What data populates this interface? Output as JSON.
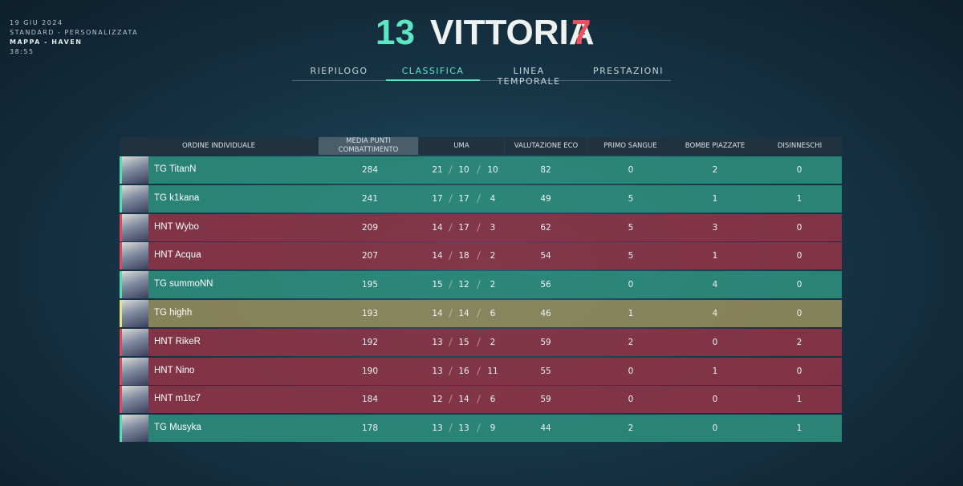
{
  "header": {
    "date": "19 GIU 2024",
    "mode": "STANDARD - PERSONALIZZATA",
    "map": "MAPPA - HAVEN",
    "duration": "38:55"
  },
  "score": {
    "team_score": 13,
    "result": "VITTORIA",
    "enemy_score": 7,
    "team_color": "#5ee6c4",
    "enemy_color": "#f0515f"
  },
  "tabs": {
    "items": [
      "RIEPILOGO",
      "CLASSIFICA",
      "LINEA TEMPORALE",
      "PRESTAZIONI"
    ],
    "active": 1
  },
  "table": {
    "columns": [
      "ORDINE INDIVIDUALE",
      "MEDIA PUNTI COMBATTIMENTO",
      "UMA",
      "VALUTAZIONE ECO",
      "PRIMO SANGUE",
      "BOMBE PIAZZATE",
      "DISINNESCHI"
    ],
    "sorted_column": 1,
    "rows": [
      {
        "name": "TG TitanN",
        "color": "#2c8b7b",
        "accent": "#4be3b6",
        "acs": 284,
        "kda": [
          21,
          10,
          10
        ],
        "eco": 82,
        "first_bloods": 0,
        "plants": 2,
        "defuses": 0
      },
      {
        "name": "TG k1kana",
        "color": "#2c8b7b",
        "accent": "#4be3b6",
        "acs": 241,
        "kda": [
          17,
          17,
          4
        ],
        "eco": 49,
        "first_bloods": 5,
        "plants": 1,
        "defuses": 1
      },
      {
        "name": "HNT Wybo",
        "color": "#8a3447",
        "accent": "#e8455c",
        "acs": 209,
        "kda": [
          14,
          17,
          3
        ],
        "eco": 62,
        "first_bloods": 5,
        "plants": 3,
        "defuses": 0
      },
      {
        "name": "HNT Acqua",
        "color": "#8a3447",
        "accent": "#e8455c",
        "acs": 207,
        "kda": [
          14,
          18,
          2
        ],
        "eco": 54,
        "first_bloods": 5,
        "plants": 1,
        "defuses": 0
      },
      {
        "name": "TG summoNN",
        "color": "#2c8b7b",
        "accent": "#4be3b6",
        "acs": 195,
        "kda": [
          15,
          12,
          2
        ],
        "eco": 56,
        "first_bloods": 0,
        "plants": 4,
        "defuses": 0
      },
      {
        "name": "TG highh",
        "color": "#8f8a5c",
        "accent": "#eee27a",
        "acs": 193,
        "kda": [
          14,
          14,
          6
        ],
        "eco": 46,
        "first_bloods": 1,
        "plants": 4,
        "defuses": 0
      },
      {
        "name": "HNT RikeR",
        "color": "#8a3447",
        "accent": "#e8455c",
        "acs": 192,
        "kda": [
          13,
          15,
          2
        ],
        "eco": 59,
        "first_bloods": 2,
        "plants": 0,
        "defuses": 2
      },
      {
        "name": "HNT Nino",
        "color": "#8a3447",
        "accent": "#e8455c",
        "acs": 190,
        "kda": [
          13,
          16,
          11
        ],
        "eco": 55,
        "first_bloods": 0,
        "plants": 1,
        "defuses": 0
      },
      {
        "name": "HNT m1tc7",
        "color": "#8a3447",
        "accent": "#e8455c",
        "acs": 184,
        "kda": [
          12,
          14,
          6
        ],
        "eco": 59,
        "first_bloods": 0,
        "plants": 0,
        "defuses": 1
      },
      {
        "name": "TG Musyka",
        "color": "#2c8b7b",
        "accent": "#4be3b6",
        "acs": 178,
        "kda": [
          13,
          13,
          9
        ],
        "eco": 44,
        "first_bloods": 2,
        "plants": 0,
        "defuses": 1
      }
    ]
  }
}
